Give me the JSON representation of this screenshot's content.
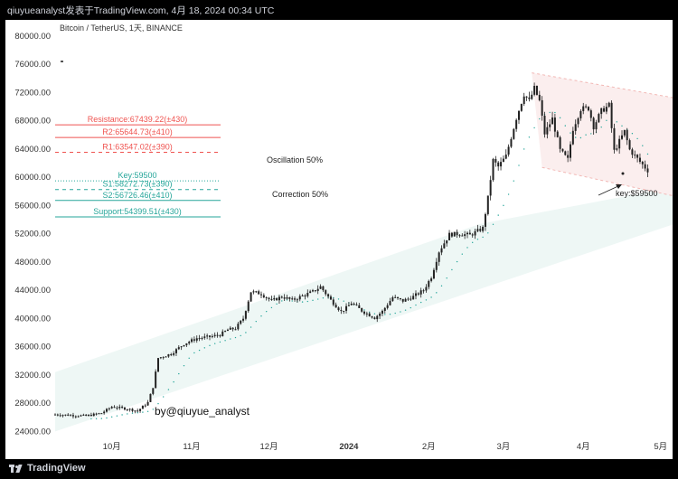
{
  "header": {
    "caption": "qiuyueanalyst发表于TradingView.com, 4月 18, 2024 00:34 UTC"
  },
  "footer": {
    "brand": "TradingView"
  },
  "chart_data": {
    "type": "candlestick",
    "title": "Bitcoin / TetherUS, 1天, BINANCE",
    "y_ticks": [
      "80000.00",
      "76000.00",
      "72000.00",
      "68000.00",
      "64000.00",
      "60000.00",
      "56000.00",
      "52000.00",
      "48000.00",
      "44000.00",
      "40000.00",
      "36000.00",
      "32000.00",
      "28000.00",
      "24000.00"
    ],
    "ylim": [
      24000,
      80000
    ],
    "x_ticks": [
      {
        "label": "10月",
        "t": 22
      },
      {
        "label": "11月",
        "t": 53
      },
      {
        "label": "12月",
        "t": 83
      },
      {
        "label": "2024",
        "t": 114
      },
      {
        "label": "2月",
        "t": 145
      },
      {
        "label": "3月",
        "t": 174
      },
      {
        "label": "4月",
        "t": 205
      },
      {
        "label": "5月",
        "t": 235
      }
    ],
    "close_anchors": [
      [
        0,
        26400
      ],
      [
        6,
        26300
      ],
      [
        12,
        26200
      ],
      [
        18,
        26600
      ],
      [
        22,
        27500
      ],
      [
        28,
        27200
      ],
      [
        32,
        26900
      ],
      [
        36,
        28100
      ],
      [
        38,
        30300
      ],
      [
        40,
        34400
      ],
      [
        45,
        35000
      ],
      [
        50,
        36400
      ],
      [
        55,
        37200
      ],
      [
        60,
        37400
      ],
      [
        64,
        37700
      ],
      [
        67,
        38400
      ],
      [
        70,
        38600
      ],
      [
        73,
        40000
      ],
      [
        76,
        43800
      ],
      [
        80,
        43500
      ],
      [
        84,
        42500
      ],
      [
        88,
        43100
      ],
      [
        92,
        42600
      ],
      [
        96,
        43200
      ],
      [
        100,
        43800
      ],
      [
        103,
        44500
      ],
      [
        107,
        42600
      ],
      [
        111,
        41000
      ],
      [
        113,
        41500
      ],
      [
        115,
        42200
      ],
      [
        119,
        41100
      ],
      [
        124,
        40100
      ],
      [
        127,
        41000
      ],
      [
        131,
        43000
      ],
      [
        135,
        42500
      ],
      [
        139,
        43100
      ],
      [
        143,
        44000
      ],
      [
        146,
        45900
      ],
      [
        149,
        49500
      ],
      [
        153,
        51900
      ],
      [
        157,
        52000
      ],
      [
        161,
        51800
      ],
      [
        166,
        52800
      ],
      [
        168,
        57100
      ],
      [
        170,
        62400
      ],
      [
        172,
        61500
      ],
      [
        175,
        63000
      ],
      [
        179,
        68400
      ],
      [
        182,
        71800
      ],
      [
        184,
        70800
      ],
      [
        186,
        72600
      ],
      [
        188,
        70800
      ],
      [
        190,
        66200
      ],
      [
        193,
        68300
      ],
      [
        196,
        63800
      ],
      [
        199,
        62500
      ],
      [
        201,
        66900
      ],
      [
        204,
        69700
      ],
      [
        207,
        69800
      ],
      [
        209,
        67200
      ],
      [
        212,
        69400
      ],
      [
        215,
        70200
      ],
      [
        217,
        63700
      ],
      [
        221,
        66500
      ],
      [
        223,
        63900
      ],
      [
        227,
        62200
      ],
      [
        230,
        61000
      ]
    ],
    "candle_count": 231,
    "levels": [
      {
        "label": "Resistance:67439.22(±430)",
        "value": 67439.22,
        "color": "#ef5350",
        "style": "solid"
      },
      {
        "label": "R2:65644.73(±410)",
        "value": 65644.73,
        "color": "#ef5350",
        "style": "solid"
      },
      {
        "label": "R1:63547.02(±390)",
        "value": 63547.02,
        "color": "#ef5350",
        "style": "dashed"
      },
      {
        "label": "Key:59500",
        "value": 59500,
        "color": "#26a69a",
        "style": "dotted"
      },
      {
        "label": "S1:58272.73(±390)",
        "value": 58272.73,
        "color": "#26a69a",
        "style": "dashed"
      },
      {
        "label": "S2:56726.46(±410)",
        "value": 56726.46,
        "color": "#26a69a",
        "style": "solid"
      },
      {
        "label": "Support:54399.51(±430)",
        "value": 54399.51,
        "color": "#26a69a",
        "style": "solid"
      }
    ],
    "annotations": [
      {
        "text": "Oscillation 50%"
      },
      {
        "text": "Correction 50%"
      },
      {
        "text": "key:$59500"
      },
      {
        "text": "by@qiuyue_analyst"
      }
    ],
    "colors": {
      "up": "#26a69a",
      "down": "#ef5350",
      "candle": "#222222",
      "channel_down_fill": "#fbeeee",
      "channel_down_line": "#f2b8b5",
      "channel_up_fill": "#eef7f5",
      "ma": "#26a69a"
    }
  }
}
